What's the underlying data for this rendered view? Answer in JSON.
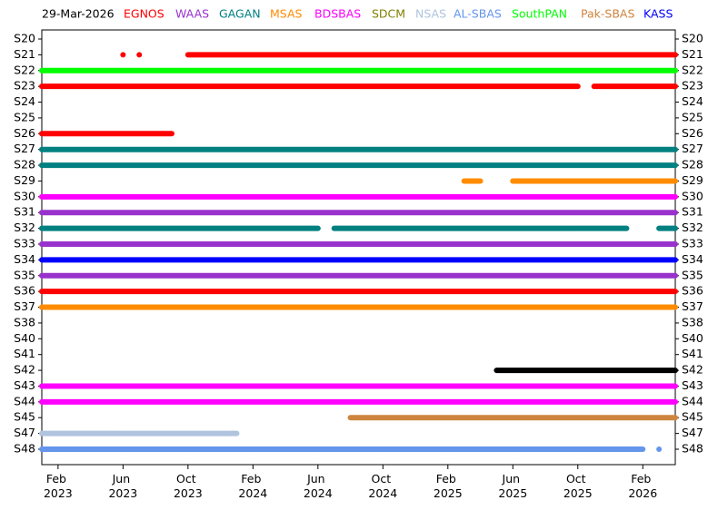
{
  "date": "29-Mar-2026",
  "chart_data": {
    "type": "timeline",
    "categories": [
      "S20",
      "S21",
      "S22",
      "S23",
      "S24",
      "S25",
      "S26",
      "S27",
      "S28",
      "S29",
      "S30",
      "S31",
      "S32",
      "S33",
      "S34",
      "S35",
      "S36",
      "S37",
      "S38",
      "S40",
      "S41",
      "S42",
      "S43",
      "S44",
      "S45",
      "S47",
      "S48"
    ],
    "xlim": [
      "2023-01",
      "2026-04"
    ],
    "xticks": [
      {
        "value": "2023-02",
        "label": "Feb 2023"
      },
      {
        "value": "2023-06",
        "label": "Jun 2023"
      },
      {
        "value": "2023-10",
        "label": "Oct 2023"
      },
      {
        "value": "2024-02",
        "label": "Feb 2024"
      },
      {
        "value": "2024-06",
        "label": "Jun 2024"
      },
      {
        "value": "2024-10",
        "label": "Oct 2024"
      },
      {
        "value": "2025-02",
        "label": "Feb 2025"
      },
      {
        "value": "2025-06",
        "label": "Jun 2025"
      },
      {
        "value": "2025-10",
        "label": "Oct 2025"
      },
      {
        "value": "2026-02",
        "label": "Feb 2026"
      }
    ],
    "series": [
      {
        "name": "EGNOS",
        "color": "#ff0000",
        "segments": [
          {
            "row": "S21",
            "start": "2023-06",
            "end": "2023-06"
          },
          {
            "row": "S21",
            "start": "2023-07",
            "end": "2023-07"
          },
          {
            "row": "S21",
            "start": "2023-10",
            "end": "2026-04"
          },
          {
            "row": "S23",
            "start": "2023-01",
            "end": "2025-10"
          },
          {
            "row": "S23",
            "start": "2025-11",
            "end": "2026-04"
          },
          {
            "row": "S26",
            "start": "2023-01",
            "end": "2023-09"
          },
          {
            "row": "S36",
            "start": "2023-01",
            "end": "2026-04"
          }
        ]
      },
      {
        "name": "WAAS",
        "color": "#9932cc",
        "segments": [
          {
            "row": "S31",
            "start": "2023-01",
            "end": "2026-04"
          },
          {
            "row": "S33",
            "start": "2023-01",
            "end": "2026-04"
          },
          {
            "row": "S35",
            "start": "2023-01",
            "end": "2026-04"
          }
        ]
      },
      {
        "name": "GAGAN",
        "color": "#008080",
        "segments": [
          {
            "row": "S27",
            "start": "2023-01",
            "end": "2026-04"
          },
          {
            "row": "S28",
            "start": "2023-01",
            "end": "2026-04"
          },
          {
            "row": "S32",
            "start": "2023-01",
            "end": "2024-06"
          },
          {
            "row": "S32",
            "start": "2024-07",
            "end": "2026-01"
          },
          {
            "row": "S32",
            "start": "2026-03",
            "end": "2026-04"
          }
        ]
      },
      {
        "name": "MSAS",
        "color": "#ff8c00",
        "segments": [
          {
            "row": "S29",
            "start": "2025-03",
            "end": "2025-04"
          },
          {
            "row": "S29",
            "start": "2025-06",
            "end": "2026-04"
          },
          {
            "row": "S37",
            "start": "2023-01",
            "end": "2026-04"
          }
        ]
      },
      {
        "name": "BDSBAS",
        "color": "#ff00ff",
        "segments": [
          {
            "row": "S30",
            "start": "2023-01",
            "end": "2026-04"
          },
          {
            "row": "S43",
            "start": "2023-01",
            "end": "2026-04"
          },
          {
            "row": "S44",
            "start": "2023-01",
            "end": "2026-04"
          }
        ]
      },
      {
        "name": "SDCM",
        "color": "#808000",
        "segments": []
      },
      {
        "name": "NSAS",
        "color": "#b0c4de",
        "segments": [
          {
            "row": "S47",
            "start": "2023-01",
            "end": "2024-01"
          }
        ]
      },
      {
        "name": "AL-SBAS",
        "color": "#6495ed",
        "segments": [
          {
            "row": "S48",
            "start": "2023-01",
            "end": "2026-02"
          },
          {
            "row": "S48",
            "start": "2026-03",
            "end": "2026-03"
          }
        ]
      },
      {
        "name": "SouthPAN",
        "color": "#00ff00",
        "segments": [
          {
            "row": "S22",
            "start": "2023-01",
            "end": "2026-04"
          }
        ]
      },
      {
        "name": "Pak-SBAS",
        "color": "#cd853f",
        "segments": [
          {
            "row": "S45",
            "start": "2024-08",
            "end": "2026-04"
          }
        ]
      },
      {
        "name": "KASS",
        "color": "#0000ff",
        "segments": [
          {
            "row": "S34",
            "start": "2023-01",
            "end": "2026-04"
          }
        ]
      },
      {
        "color": "#000000",
        "segments": [
          {
            "row": "S42",
            "start": "2025-05",
            "end": "2026-04"
          }
        ]
      }
    ]
  }
}
